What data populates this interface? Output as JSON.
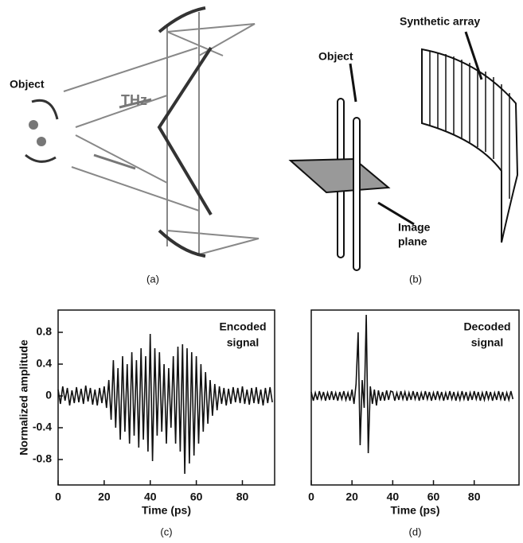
{
  "panel_a": {
    "object_label": "Object",
    "beam_label": "THz",
    "caption": "(a)"
  },
  "panel_b": {
    "object_label": "Object",
    "array_label": "Synthetic array",
    "plane_label": [
      "Image",
      "plane"
    ],
    "caption": "(b)"
  },
  "chart_data": [
    {
      "type": "line",
      "caption": "(c)",
      "annotation": [
        "Encoded",
        "signal"
      ],
      "xlabel": "Time (ps)",
      "ylabel": "Normalized amplitude",
      "color": "#111111",
      "xlim": [
        0,
        94
      ],
      "ylim": [
        -1.12,
        1.08
      ],
      "xticks": [
        0,
        20,
        40,
        60,
        80
      ],
      "yticks": [
        -0.8,
        -0.4,
        0,
        0.4,
        0.8
      ],
      "x": [
        0,
        1,
        2,
        3,
        4,
        5,
        6,
        7,
        8,
        9,
        10,
        11,
        12,
        13,
        14,
        15,
        16,
        17,
        18,
        19,
        20,
        21,
        22,
        23,
        24,
        25,
        26,
        27,
        28,
        29,
        30,
        31,
        32,
        33,
        34,
        35,
        36,
        37,
        38,
        39,
        40,
        41,
        42,
        43,
        44,
        45,
        46,
        47,
        48,
        49,
        50,
        51,
        52,
        53,
        54,
        55,
        56,
        57,
        58,
        59,
        60,
        61,
        62,
        63,
        64,
        65,
        66,
        67,
        68,
        69,
        70,
        71,
        72,
        73,
        74,
        75,
        76,
        77,
        78,
        79,
        80,
        81,
        82,
        83,
        84,
        85,
        86,
        87,
        88,
        89,
        90,
        91,
        92,
        93
      ],
      "values": [
        0.08,
        -0.1,
        0.12,
        -0.06,
        0.1,
        -0.12,
        0.07,
        -0.09,
        0.11,
        -0.08,
        0.09,
        -0.1,
        0.13,
        -0.07,
        0.1,
        -0.11,
        0.08,
        -0.12,
        0.1,
        -0.09,
        0.12,
        -0.15,
        0.2,
        -0.3,
        0.45,
        -0.4,
        0.35,
        -0.55,
        0.5,
        -0.45,
        0.4,
        -0.6,
        0.55,
        -0.5,
        0.45,
        -0.65,
        0.6,
        -0.55,
        0.5,
        -0.7,
        0.78,
        -0.82,
        0.6,
        -0.5,
        0.55,
        -0.45,
        0.4,
        -0.6,
        0.35,
        -0.4,
        0.5,
        -0.6,
        0.62,
        -0.7,
        0.65,
        -0.98,
        0.6,
        -0.85,
        0.55,
        -0.75,
        0.5,
        -0.6,
        0.4,
        -0.45,
        0.3,
        -0.35,
        0.2,
        -0.25,
        0.15,
        -0.18,
        0.12,
        -0.1,
        0.1,
        -0.12,
        0.09,
        -0.1,
        0.11,
        -0.08,
        0.1,
        -0.09,
        0.12,
        -0.1,
        0.08,
        -0.11,
        0.1,
        -0.09,
        0.11,
        -0.1,
        0.08,
        -0.12,
        0.1,
        -0.09,
        0.11,
        -0.08
      ]
    },
    {
      "type": "line",
      "caption": "(d)",
      "annotation": [
        "Decoded",
        "signal"
      ],
      "xlabel": "Time (ps)",
      "color": "#111111",
      "xlim": [
        0,
        102
      ],
      "ylim": [
        -1.12,
        1.08
      ],
      "xticks": [
        0,
        20,
        40,
        60,
        80
      ],
      "x": [
        0,
        1,
        2,
        3,
        4,
        5,
        6,
        7,
        8,
        9,
        10,
        11,
        12,
        13,
        14,
        15,
        16,
        17,
        18,
        19,
        20,
        21,
        22,
        23,
        24,
        25,
        26,
        27,
        28,
        29,
        30,
        31,
        32,
        33,
        34,
        35,
        36,
        37,
        38,
        39,
        40,
        41,
        42,
        43,
        44,
        45,
        46,
        47,
        48,
        49,
        50,
        51,
        52,
        53,
        54,
        55,
        56,
        57,
        58,
        59,
        60,
        61,
        62,
        63,
        64,
        65,
        66,
        67,
        68,
        69,
        70,
        71,
        72,
        73,
        74,
        75,
        76,
        77,
        78,
        79,
        80,
        81,
        82,
        83,
        84,
        85,
        86,
        87,
        88,
        89,
        90,
        91,
        92,
        93,
        94,
        95,
        96,
        97,
        98,
        99
      ],
      "values": [
        0.05,
        -0.06,
        0.04,
        -0.05,
        0.06,
        -0.04,
        0.05,
        -0.06,
        0.04,
        -0.05,
        0.06,
        -0.05,
        0.04,
        -0.06,
        0.05,
        -0.04,
        0.06,
        -0.05,
        0.04,
        -0.06,
        0.08,
        -0.1,
        0.15,
        0.8,
        -0.62,
        0.2,
        -0.15,
        1.02,
        -0.72,
        0.12,
        -0.1,
        0.08,
        -0.12,
        0.07,
        -0.06,
        0.05,
        -0.06,
        0.07,
        -0.05,
        0.06,
        0.05,
        -0.06,
        0.04,
        -0.05,
        0.06,
        -0.04,
        0.05,
        -0.06,
        0.04,
        -0.05,
        0.06,
        -0.04,
        0.05,
        -0.06,
        0.04,
        -0.05,
        0.06,
        -0.04,
        0.05,
        -0.06,
        0.04,
        -0.05,
        0.06,
        -0.04,
        0.05,
        -0.06,
        0.04,
        -0.05,
        0.06,
        -0.04,
        0.05,
        -0.06,
        0.04,
        -0.05,
        0.06,
        -0.04,
        0.05,
        -0.06,
        0.04,
        -0.05,
        0.06,
        -0.04,
        0.05,
        -0.06,
        0.04,
        -0.05,
        0.06,
        -0.04,
        0.05,
        -0.06,
        0.04,
        -0.05,
        0.06,
        -0.04,
        0.05,
        -0.06,
        0.04,
        -0.05,
        0.06,
        -0.04
      ]
    }
  ]
}
